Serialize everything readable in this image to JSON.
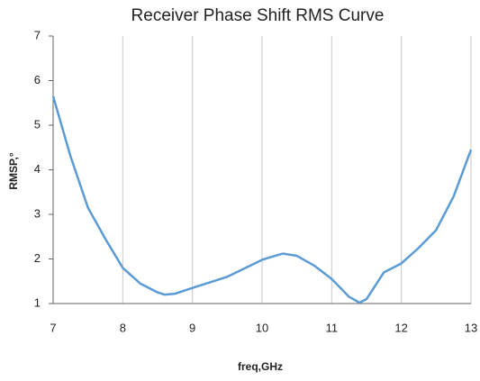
{
  "chart_data": {
    "type": "line",
    "title": "Receiver Phase Shift RMS Curve",
    "x_label": "freq,GHz",
    "y_label": "RMSP,°",
    "x": [
      7,
      7.25,
      7.5,
      7.75,
      8,
      8.25,
      8.5,
      8.6,
      8.75,
      9,
      9.5,
      10,
      10.25,
      10.3,
      10.5,
      10.75,
      11,
      11.25,
      11.4,
      11.5,
      11.75,
      12,
      12.25,
      12.5,
      12.75,
      13
    ],
    "series": [
      {
        "name": "RMSP",
        "color": "#5b9bd5",
        "values": [
          5.65,
          4.3,
          3.15,
          2.45,
          1.8,
          1.45,
          1.25,
          1.2,
          1.22,
          1.35,
          1.6,
          1.98,
          2.1,
          2.12,
          2.07,
          1.85,
          1.55,
          1.15,
          1.02,
          1.1,
          1.7,
          1.9,
          2.25,
          2.65,
          3.4,
          4.45
        ]
      }
    ],
    "xlim": [
      7,
      13
    ],
    "xticks": [
      7,
      8,
      9,
      10,
      11,
      12,
      13
    ],
    "ylim": [
      1,
      7
    ],
    "yticks": [
      1,
      2,
      3,
      4,
      5,
      6,
      7
    ],
    "grid": true
  }
}
